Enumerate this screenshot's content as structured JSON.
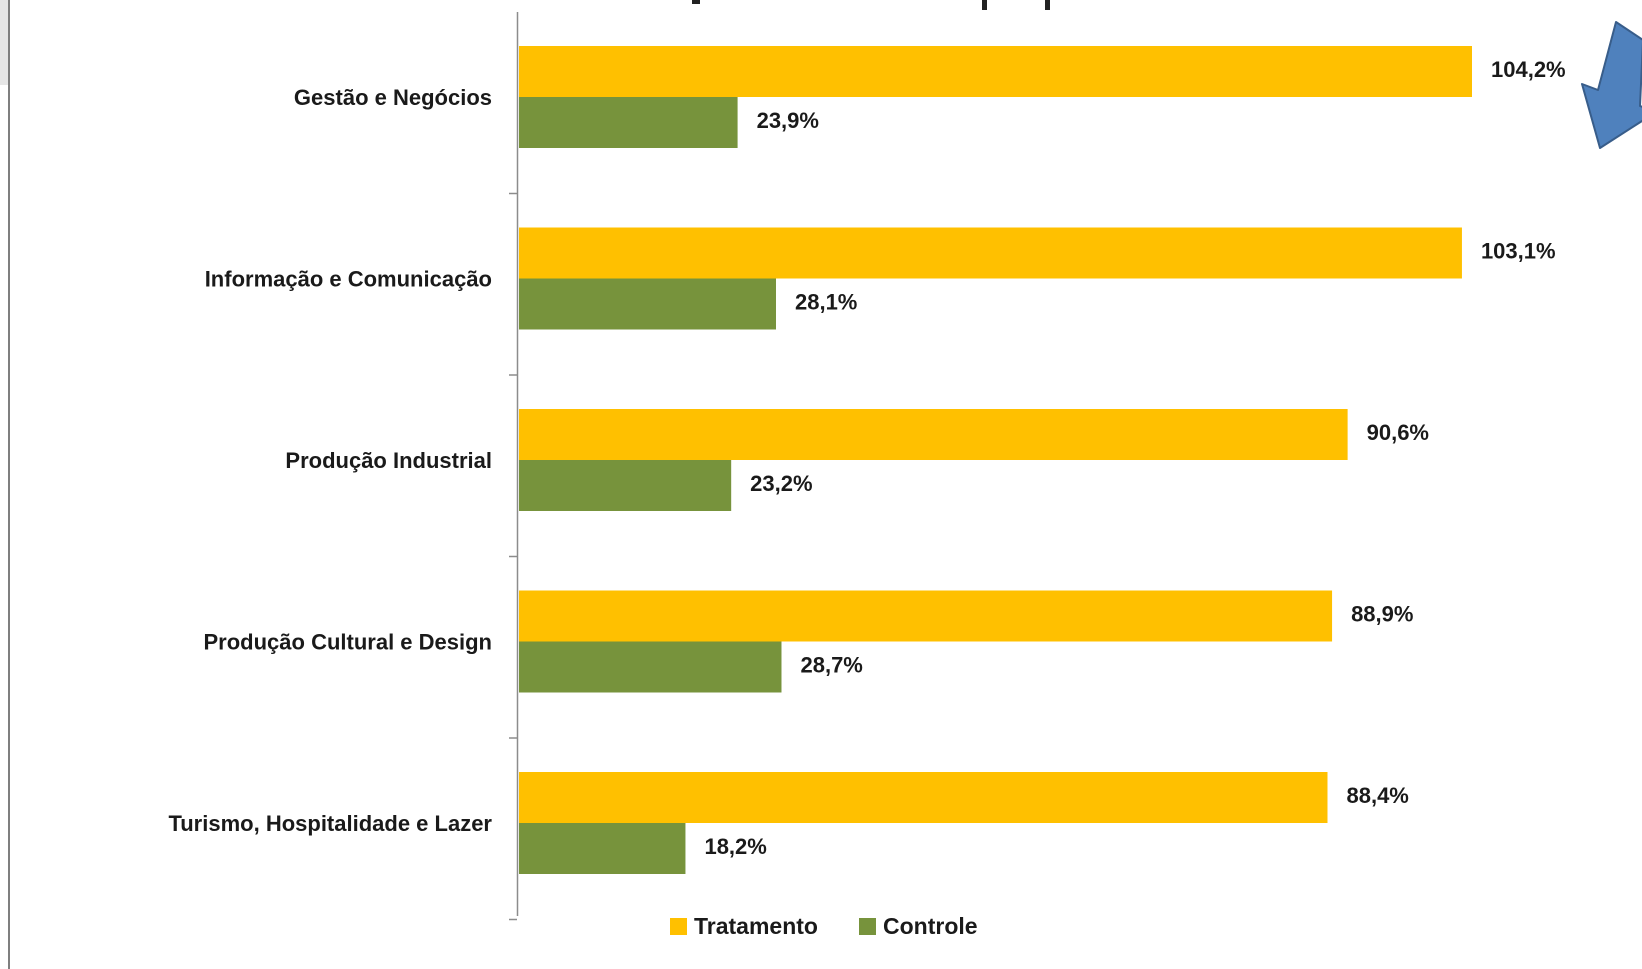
{
  "chart_data": {
    "type": "bar",
    "orientation": "horizontal",
    "categories": [
      "Gestão e Negócios",
      "Informação e Comunicação",
      "Produção Industrial",
      "Produção Cultural e Design",
      "Turismo, Hospitalidade e Lazer"
    ],
    "series": [
      {
        "name": "Tratamento",
        "color": "#FFC000",
        "values": [
          104.2,
          103.1,
          90.6,
          88.9,
          88.4
        ],
        "labels": [
          "104,2%",
          "103,1%",
          "90,6%",
          "88,9%",
          "88,4%"
        ]
      },
      {
        "name": "Controle",
        "color": "#77933C",
        "values": [
          23.9,
          28.1,
          23.2,
          28.7,
          18.2
        ],
        "labels": [
          "23,9%",
          "28,1%",
          "23,2%",
          "28,7%",
          "18,2%"
        ]
      }
    ],
    "xlim": [
      0,
      115
    ],
    "grid": false,
    "legend": "bottom-center",
    "annotations": [
      {
        "type": "arrow",
        "color": "#4F81BD",
        "pointing": "down-left",
        "near": "104,2%"
      }
    ]
  }
}
